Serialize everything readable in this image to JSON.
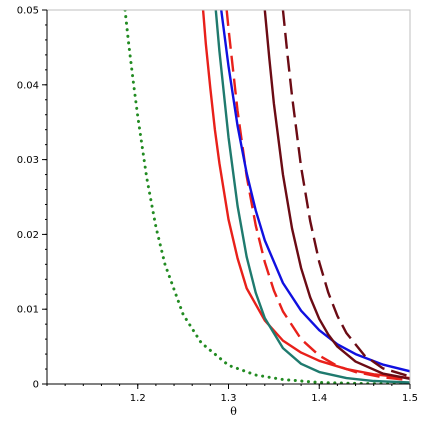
{
  "chart_data": {
    "type": "line",
    "title": "",
    "xlabel": "θ",
    "ylabel": "",
    "xlim": [
      1.1,
      1.5
    ],
    "ylim": [
      0,
      0.05
    ],
    "grid": false,
    "legend": "none",
    "x_ticks": [
      1.2,
      1.3,
      1.4,
      1.5
    ],
    "x_tick_labels": [
      "1.2",
      "1.3",
      "1.4",
      "1.5"
    ],
    "y_ticks": [
      0,
      0.01,
      0.02,
      0.03,
      0.04,
      0.05
    ],
    "y_tick_labels": [
      "0",
      "0.01",
      "0.02",
      "0.03",
      "0.04",
      "0.05"
    ],
    "series": [
      {
        "color": "#228B22",
        "style": "dotted",
        "width": 3,
        "x": [
          1.186,
          1.19,
          1.195,
          1.2,
          1.21,
          1.22,
          1.23,
          1.25,
          1.27,
          1.3,
          1.33,
          1.36,
          1.4,
          1.45,
          1.5
        ],
        "y": [
          0.05,
          0.0455,
          0.0405,
          0.0358,
          0.0275,
          0.021,
          0.016,
          0.0093,
          0.0055,
          0.0025,
          0.0012,
          0.0006,
          0.0002,
          5e-05,
          0
        ]
      },
      {
        "color": "#E8201A",
        "style": "solid",
        "width": 2.4,
        "x": [
          1.272,
          1.275,
          1.28,
          1.285,
          1.29,
          1.3,
          1.31,
          1.32,
          1.34,
          1.36,
          1.38,
          1.4,
          1.43,
          1.46,
          1.5
        ],
        "y": [
          0.05,
          0.0455,
          0.0395,
          0.034,
          0.0295,
          0.022,
          0.0168,
          0.0128,
          0.0085,
          0.0058,
          0.0042,
          0.0031,
          0.002,
          0.0013,
          0.0008
        ]
      },
      {
        "color": "#1F7A6E",
        "style": "solid",
        "width": 2.4,
        "x": [
          1.286,
          1.29,
          1.3,
          1.31,
          1.32,
          1.33,
          1.34,
          1.36,
          1.38,
          1.4,
          1.43,
          1.46,
          1.5
        ],
        "y": [
          0.05,
          0.0445,
          0.033,
          0.0238,
          0.017,
          0.0122,
          0.0088,
          0.0048,
          0.0027,
          0.0016,
          0.0008,
          0.0004,
          0.0002
        ]
      },
      {
        "color": "#E8201A",
        "style": "dashed",
        "width": 2.4,
        "x": [
          1.298,
          1.3,
          1.31,
          1.32,
          1.33,
          1.34,
          1.35,
          1.36,
          1.38,
          1.4,
          1.42,
          1.44,
          1.47,
          1.5
        ],
        "y": [
          0.05,
          0.0475,
          0.0365,
          0.0278,
          0.0212,
          0.0163,
          0.0125,
          0.0097,
          0.006,
          0.0038,
          0.0024,
          0.0016,
          0.0009,
          0.0005
        ]
      },
      {
        "color": "#1010E0",
        "style": "solid",
        "width": 2.4,
        "x": [
          1.292,
          1.3,
          1.31,
          1.32,
          1.33,
          1.34,
          1.36,
          1.38,
          1.4,
          1.42,
          1.44,
          1.47,
          1.5
        ],
        "y": [
          0.05,
          0.0425,
          0.0345,
          0.0282,
          0.0232,
          0.0192,
          0.0135,
          0.0098,
          0.0072,
          0.0053,
          0.004,
          0.0026,
          0.0017
        ]
      },
      {
        "color": "#6B0B14",
        "style": "solid",
        "width": 2.4,
        "x": [
          1.34,
          1.345,
          1.35,
          1.36,
          1.37,
          1.38,
          1.39,
          1.4,
          1.41,
          1.42,
          1.44,
          1.47,
          1.5
        ],
        "y": [
          0.05,
          0.0435,
          0.0375,
          0.028,
          0.0208,
          0.0155,
          0.0116,
          0.0087,
          0.0066,
          0.005,
          0.003,
          0.0014,
          0.0007
        ]
      },
      {
        "color": "#6B0B14",
        "style": "dashed",
        "width": 2.4,
        "x": [
          1.36,
          1.365,
          1.37,
          1.38,
          1.39,
          1.4,
          1.41,
          1.42,
          1.43,
          1.45,
          1.47,
          1.5
        ],
        "y": [
          0.05,
          0.044,
          0.0385,
          0.029,
          0.0218,
          0.0163,
          0.0122,
          0.0091,
          0.0068,
          0.0038,
          0.0021,
          0.001
        ]
      }
    ]
  }
}
